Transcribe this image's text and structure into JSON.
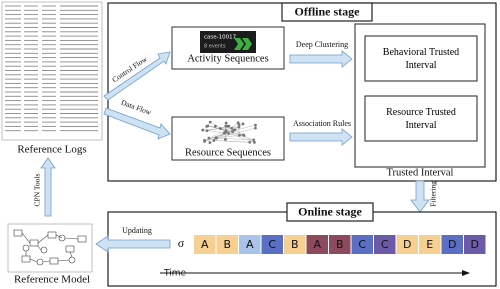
{
  "offline": {
    "title": "Offline stage",
    "control_flow": "Control Flow",
    "data_flow": "Data Flow",
    "activity_sequences": "Activity Sequences",
    "case_id": "case-10017",
    "case_events": "8 events",
    "resource_sequences": "Resource Sequences",
    "deep_clustering": "Deep Clustering",
    "association_rules": "Association Rules",
    "behavioral_interval": "Behavioral Trusted Interval",
    "resource_interval": "Resource Trusted Interval",
    "trusted_interval": "Trusted Interval"
  },
  "left": {
    "reference_logs": "Reference Logs",
    "cpn_tools": "CPN Tools",
    "reference_model": "Reference Model"
  },
  "online": {
    "title": "Online stage",
    "filtering": "Filtering",
    "updating": "Updating",
    "sigma": "σ",
    "time": "Time",
    "sequence": [
      {
        "label": "A",
        "color": "#f6cf93"
      },
      {
        "label": "B",
        "color": "#f6cf93"
      },
      {
        "label": "A",
        "color": "#a9c4e8"
      },
      {
        "label": "C",
        "color": "#5b6fc4"
      },
      {
        "label": "B",
        "color": "#f6cf93"
      },
      {
        "label": "A",
        "color": "#8c4a5c"
      },
      {
        "label": "B",
        "color": "#8c4a5c"
      },
      {
        "label": "C",
        "color": "#5b6fc4"
      },
      {
        "label": "C",
        "color": "#6a5aa8"
      },
      {
        "label": "D",
        "color": "#f6cf93"
      },
      {
        "label": "E",
        "color": "#f6cf93"
      },
      {
        "label": "D",
        "color": "#5b6fc4"
      },
      {
        "label": "D",
        "color": "#6a5aa8"
      }
    ]
  }
}
